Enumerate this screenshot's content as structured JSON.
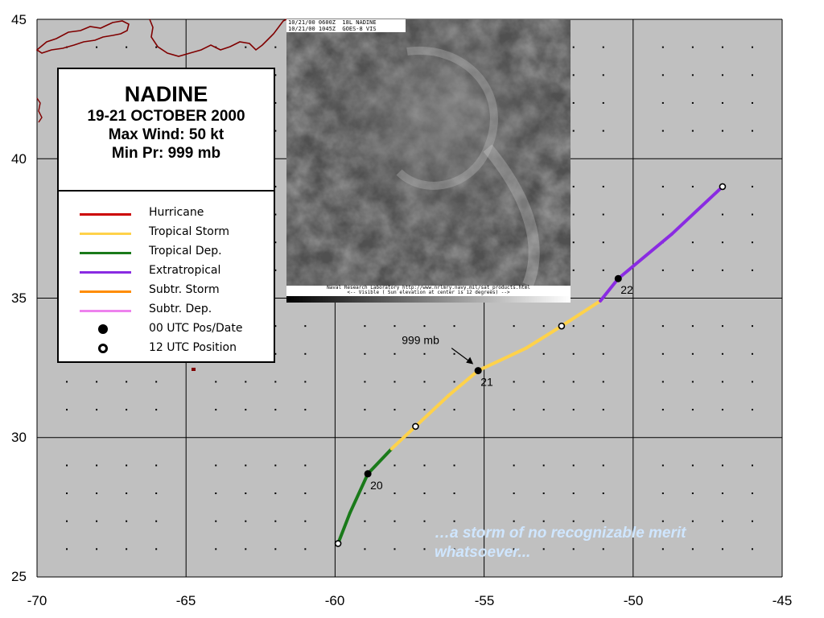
{
  "map": {
    "lon_range": [
      -70,
      -45
    ],
    "lat_range": [
      25,
      45
    ],
    "x_ticks": [
      "-70",
      "-65",
      "-60",
      "-55",
      "-50",
      "-45"
    ],
    "y_ticks": [
      "45",
      "40",
      "35",
      "30",
      "25"
    ],
    "ocean_color": "#c0c0c0",
    "grid_color": "#000000",
    "land_color": "#800000"
  },
  "info": {
    "name": "NADINE",
    "dates": "19-21 OCTOBER 2000",
    "max_wind": "Max Wind: 50 kt",
    "min_pressure": "Min Pr: 999 mb"
  },
  "legend": [
    {
      "label": "Hurricane",
      "color": "#cc0000",
      "kind": "line"
    },
    {
      "label": "Tropical Storm",
      "color": "#ffd24a",
      "kind": "line"
    },
    {
      "label": "Tropical Dep.",
      "color": "#1a7a1a",
      "kind": "line"
    },
    {
      "label": "Extratropical",
      "color": "#8a2be2",
      "kind": "line"
    },
    {
      "label": "Subtr. Storm",
      "color": "#ff8c00",
      "kind": "line"
    },
    {
      "label": "Subtr. Dep.",
      "color": "#ee82ee",
      "kind": "line"
    },
    {
      "label": "00 UTC Pos/Date",
      "color": "#000000",
      "kind": "filled"
    },
    {
      "label": "12 UTC Position",
      "color": "#000000",
      "kind": "open"
    }
  ],
  "track": [
    {
      "lon": -59.9,
      "lat": 26.2,
      "status": "td"
    },
    {
      "lon": -59.5,
      "lat": 27.3,
      "status": "td"
    },
    {
      "lon": -58.9,
      "lat": 28.7,
      "status": "td"
    },
    {
      "lon": -58.1,
      "lat": 29.6,
      "status": "td"
    },
    {
      "lon": -57.3,
      "lat": 30.4,
      "status": "ts"
    },
    {
      "lon": -56.2,
      "lat": 31.5,
      "status": "ts"
    },
    {
      "lon": -55.2,
      "lat": 32.4,
      "status": "ts"
    },
    {
      "lon": -53.6,
      "lat": 33.2,
      "status": "ts"
    },
    {
      "lon": -52.4,
      "lat": 34.0,
      "status": "ts"
    },
    {
      "lon": -51.1,
      "lat": 34.9,
      "status": "ts"
    },
    {
      "lon": -50.5,
      "lat": 35.7,
      "status": "ex"
    },
    {
      "lon": -48.7,
      "lat": 37.3,
      "status": "ex"
    },
    {
      "lon": -47.0,
      "lat": 39.0,
      "status": "ex"
    }
  ],
  "status_colors": {
    "td": "#1a7a1a",
    "ts": "#ffd24a",
    "ex": "#8a2be2"
  },
  "positions": [
    {
      "lon": -59.9,
      "lat": 26.2,
      "type": "12"
    },
    {
      "lon": -58.9,
      "lat": 28.7,
      "type": "00",
      "label": "20"
    },
    {
      "lon": -57.3,
      "lat": 30.4,
      "type": "12"
    },
    {
      "lon": -55.2,
      "lat": 32.4,
      "type": "00",
      "label": "21"
    },
    {
      "lon": -52.4,
      "lat": 34.0,
      "type": "12"
    },
    {
      "lon": -50.5,
      "lat": 35.7,
      "type": "00",
      "label": "22"
    },
    {
      "lon": -47.0,
      "lat": 39.0,
      "type": "12"
    }
  ],
  "pressure_note": {
    "text": "999 mb",
    "lon": -55.2,
    "lat": 32.4
  },
  "satellite": {
    "header_line1": "10/21/00 0600Z  18L NADINE",
    "header_line2": "10/21/00 1045Z  GOES-8 VIS",
    "footer_line1": "Naval Research Laboratory  http://www.nrlmry.navy.mil/sat_products.html",
    "footer_line2": "<--  Visible ( Sun elevation at center is 12 degrees)  -->"
  },
  "caption": "…a storm of no recognizable merit whatsoever..."
}
